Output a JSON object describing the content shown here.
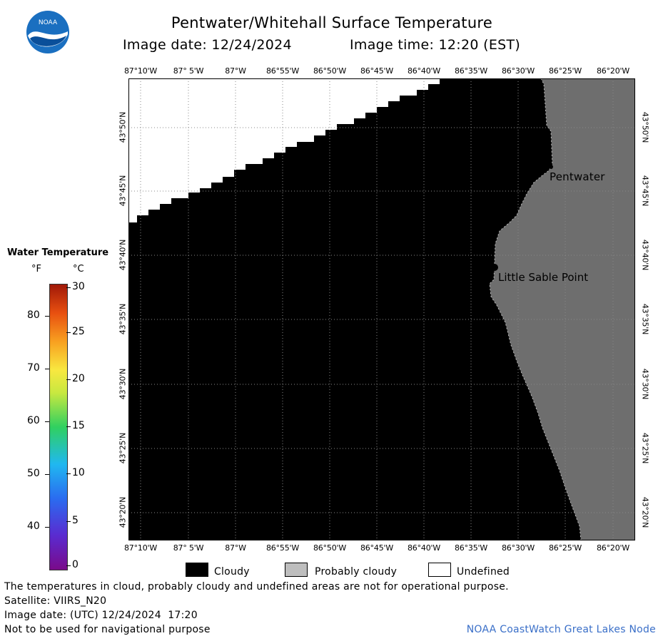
{
  "header": {
    "title": "Pentwater/Whitehall Surface Temperature",
    "image_date_label": "Image date: 12/24/2024",
    "image_time_label": "Image time: 12:20 (EST)",
    "logo_text": "NOAA"
  },
  "map": {
    "lon_labels": [
      "87°10'W",
      "87° 5'W",
      "87°W",
      "86°55'W",
      "86°50'W",
      "86°45'W",
      "86°40'W",
      "86°35'W",
      "86°30'W",
      "86°25'W",
      "86°20'W"
    ],
    "lat_labels": [
      "43°50'N",
      "43°45'N",
      "43°40'N",
      "43°35'N",
      "43°30'N",
      "43°25'N",
      "43°20'N"
    ],
    "places": [
      {
        "name": "Pentwater"
      },
      {
        "name": "Little Sable Point"
      }
    ],
    "colors": {
      "cloudy": "#000000",
      "land": "#6e6e6e",
      "probably_cloudy": "#bebebe",
      "undefined": "#ffffff"
    }
  },
  "color_scale": {
    "title": "Water Temperature",
    "unit_f": "°F",
    "unit_c": "°C",
    "f_ticks": [
      "80",
      "70",
      "60",
      "50",
      "40"
    ],
    "c_ticks": [
      "30",
      "25",
      "20",
      "15",
      "10",
      "5",
      "0"
    ]
  },
  "legend": {
    "cloudy": "Cloudy",
    "probably_cloudy": "Probably cloudy",
    "undefined": "Undefined"
  },
  "footer": {
    "disclaimer": "The temperatures in cloud, probably cloudy and undefined areas are not for operational purpose.",
    "satellite": "Satellite: VIIRS_N20",
    "utc_date": "Image date: (UTC) 12/24/2024  17:20",
    "nav_warning": "Not to be used for navigational purpose",
    "credit": "NOAA CoastWatch Great Lakes Node"
  }
}
